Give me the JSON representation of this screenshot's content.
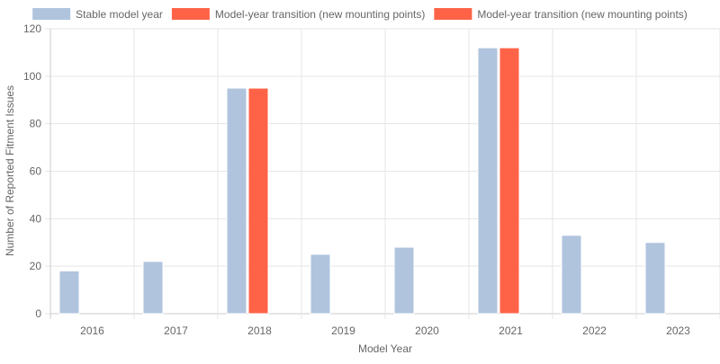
{
  "colors": {
    "stable": "#b0c4de",
    "transition": "#ff6347",
    "grid": "#e5e5e5",
    "axis": "#cccccc",
    "text": "#666666"
  },
  "chart_data": {
    "type": "bar",
    "categories": [
      "2016",
      "2017",
      "2018",
      "2019",
      "2020",
      "2021",
      "2022",
      "2023"
    ],
    "series": [
      {
        "name": "Stable model year",
        "color": "#b0c4de",
        "values": [
          18,
          22,
          95,
          25,
          28,
          112,
          33,
          30
        ]
      },
      {
        "name": "Model-year transition (new mounting points)",
        "color": "#ff6347",
        "values": [
          0,
          0,
          95,
          0,
          0,
          112,
          0,
          0
        ]
      }
    ],
    "legend": [
      {
        "name": "Stable model year",
        "color": "#b0c4de"
      },
      {
        "name": "Model-year transition (new mounting points)",
        "color": "#ff6347"
      },
      {
        "name": "Model-year transition (new mounting points)",
        "color": "#ff6347"
      }
    ],
    "legend_position": "top",
    "title": "",
    "xlabel": "Model Year",
    "ylabel": "Number of Reported Fitment Issues",
    "ylim": [
      0,
      120
    ],
    "yticks": [
      0,
      20,
      40,
      60,
      80,
      100,
      120
    ],
    "grid": true
  }
}
